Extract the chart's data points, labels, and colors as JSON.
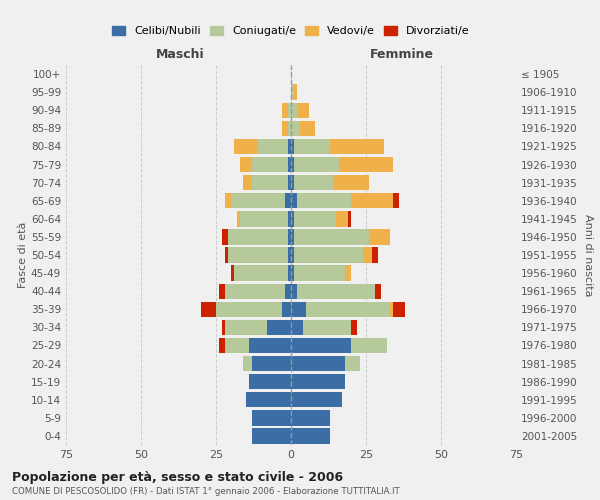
{
  "age_groups": [
    "0-4",
    "5-9",
    "10-14",
    "15-19",
    "20-24",
    "25-29",
    "30-34",
    "35-39",
    "40-44",
    "45-49",
    "50-54",
    "55-59",
    "60-64",
    "65-69",
    "70-74",
    "75-79",
    "80-84",
    "85-89",
    "90-94",
    "95-99",
    "100+"
  ],
  "birth_years": [
    "2001-2005",
    "1996-2000",
    "1991-1995",
    "1986-1990",
    "1981-1985",
    "1976-1980",
    "1971-1975",
    "1966-1970",
    "1961-1965",
    "1956-1960",
    "1951-1955",
    "1946-1950",
    "1941-1945",
    "1936-1940",
    "1931-1935",
    "1926-1930",
    "1921-1925",
    "1916-1920",
    "1911-1915",
    "1906-1910",
    "≤ 1905"
  ],
  "colors": {
    "celibi": "#3a6ea5",
    "coniugati": "#b5c99a",
    "vedovi": "#f0b04a",
    "divorziati": "#cc2200"
  },
  "males": {
    "celibi": [
      13,
      13,
      15,
      14,
      13,
      14,
      8,
      3,
      2,
      1,
      1,
      1,
      1,
      2,
      1,
      1,
      1,
      0,
      0,
      0,
      0
    ],
    "coniugati": [
      0,
      0,
      0,
      0,
      3,
      8,
      14,
      22,
      20,
      18,
      20,
      20,
      16,
      18,
      12,
      12,
      10,
      1,
      1,
      0,
      0
    ],
    "vedovi": [
      0,
      0,
      0,
      0,
      0,
      0,
      0,
      0,
      0,
      0,
      0,
      0,
      1,
      2,
      3,
      4,
      8,
      2,
      2,
      0,
      0
    ],
    "divorziati": [
      0,
      0,
      0,
      0,
      0,
      2,
      1,
      5,
      2,
      1,
      1,
      2,
      0,
      0,
      0,
      0,
      0,
      0,
      0,
      0,
      0
    ]
  },
  "females": {
    "celibi": [
      13,
      13,
      17,
      18,
      18,
      20,
      4,
      5,
      2,
      1,
      1,
      1,
      1,
      2,
      1,
      1,
      1,
      0,
      0,
      0,
      0
    ],
    "coniugati": [
      0,
      0,
      0,
      0,
      5,
      12,
      16,
      28,
      26,
      17,
      23,
      25,
      14,
      18,
      13,
      15,
      12,
      3,
      2,
      1,
      0
    ],
    "vedovi": [
      0,
      0,
      0,
      0,
      0,
      0,
      0,
      1,
      0,
      2,
      3,
      7,
      4,
      14,
      12,
      18,
      18,
      5,
      4,
      1,
      0
    ],
    "divorziati": [
      0,
      0,
      0,
      0,
      0,
      0,
      2,
      4,
      2,
      0,
      2,
      0,
      1,
      2,
      0,
      0,
      0,
      0,
      0,
      0,
      0
    ]
  },
  "xlim": 75,
  "title": "Popolazione per età, sesso e stato civile - 2006",
  "subtitle": "COMUNE DI PESCOSOLIDO (FR) - Dati ISTAT 1° gennaio 2006 - Elaborazione TUTTITALIA.IT",
  "ylabel_left": "Fasce di età",
  "ylabel_right": "Anni di nascita",
  "xlabel_maschi": "Maschi",
  "xlabel_femmine": "Femmine",
  "legend_labels": [
    "Celibi/Nubili",
    "Coniugati/e",
    "Vedovi/e",
    "Divorziati/e"
  ],
  "background_color": "#f0f0f0",
  "grid_color": "#cccccc"
}
